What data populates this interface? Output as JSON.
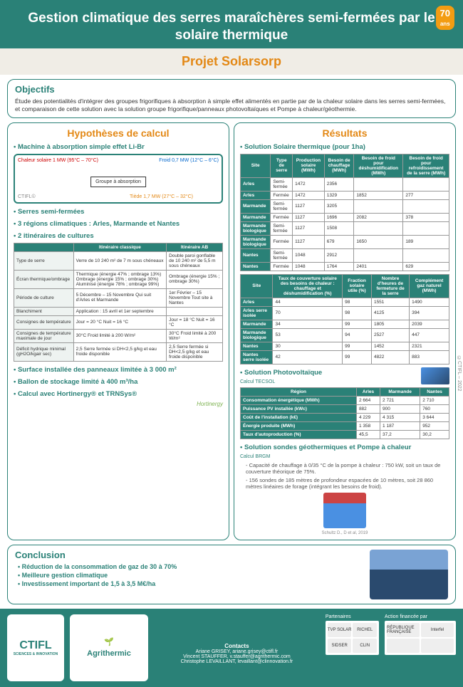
{
  "header": {
    "title": "Gestion climatique des serres maraîchères semi-fermées par le solaire thermique",
    "badge_num": "70",
    "badge_txt": "ans",
    "project": "Projet Solarsorp"
  },
  "objectifs": {
    "title": "Objectifs",
    "text": "Étude des potentialités d'intégrer des groupes frigorifiques à absorption à simple effet alimentés en partie par de la chaleur solaire dans les serres semi-fermées, et comparaison de cette solution avec la solution groupe frigorifique/panneaux photovoltaïques et Pompe à chaleur/géothermie."
  },
  "hypo": {
    "title": "Hypothèses de calcul",
    "b1": "Machine à absorption simple effet Li-Br",
    "diagram": {
      "ctifl": "CTIFL©",
      "hot": "Chaleur solaire 1 MW (95°C – 70°C)",
      "cold": "Froid 0,7 MW (12°C – 6°C)",
      "tepid": "Tiède 1,7 MW (27°C – 32°C)",
      "box": "Groupe à absorption"
    },
    "b2": "Serres semi-fermées",
    "b3": "3 régions climatiques : Arles, Marmande et Nantes",
    "b4": "2 itinéraires de cultures",
    "culture_tbl": {
      "hdr": [
        "",
        "Itinéraire classique",
        "Itinéraire AB"
      ],
      "rows": [
        [
          "Type de serre",
          "Verre de 10 240 m² de 7 m sous chéneaux",
          "Double paroi gonflable de 10 240 m² de 5,5 m sous chéneaux"
        ],
        [
          "Écran thermique/ombrage",
          "Thermique (énergie 47% ; ombrage 13%)\nOmbrage (énergie 15% ; ombrage 30%)\nAluminisé (énergie 78% ; ombrage 99%)",
          "Ombrage (énergie 15% ; ombrage 30%)"
        ],
        [
          "Période de culture",
          "5 Décembre – 15 Novembre\nQui suit d'Arles et Marmande",
          "1er Février – 15 Novembre\nTout site à Nantes"
        ],
        [
          "Blanchiment",
          "Application : 15 avril et 1er septembre",
          ""
        ],
        [
          "Consignes de température",
          "Jour = 20 °C\nNuit = 16 °C",
          "Jour = 18 °C\nNuit = 16 °C"
        ],
        [
          "Consignes de température maximale de jour",
          "30°C\nFroid limité à 200 W/m²",
          "30°C\nFroid limité à 200 W/m²"
        ],
        [
          "Déficit hydrique minimal (gH2O/kgair sec)",
          "2,5\nSerre fermée si DH<2,5 g/kg et eau froide disponible",
          "2,5\nSerre fermée si DH<2,5 g/kg et eau froide disponible"
        ]
      ]
    },
    "b5": "Surface installée des panneaux limitée à 3 000 m²",
    "b6": "Ballon de stockage limité à 400 m³/ha",
    "b7": "Calcul avec Hortinergy® et TRNSys®",
    "horti": "Hortinergy"
  },
  "res": {
    "title": "Résultats",
    "b1": "Solution Solaire thermique (pour 1ha)",
    "tbl1": {
      "hdr": [
        "Site",
        "Type de serre",
        "Production solaire (MWh)",
        "Besoin de chauffage (MWh)",
        "Besoin de froid pour déshumidification (MWh)",
        "Besoin de froid pour refroidissement de la serre (MWh)"
      ],
      "rows": [
        [
          "Arles",
          "Semi-fermée",
          "1472",
          "2356",
          "",
          ""
        ],
        [
          "Arles",
          "Fermée",
          "1472",
          "1329",
          "1852",
          "277"
        ],
        [
          "Marmande",
          "Semi-fermée",
          "1127",
          "3205",
          "",
          ""
        ],
        [
          "Marmande",
          "Fermée",
          "1127",
          "1696",
          "2082",
          "378"
        ],
        [
          "Marmande biologique",
          "Semi-fermée",
          "1127",
          "1508",
          "",
          ""
        ],
        [
          "Marmande biologique",
          "Fermée",
          "1127",
          "679",
          "1650",
          "189"
        ],
        [
          "Nantes",
          "Semi-fermée",
          "1048",
          "2912",
          "",
          ""
        ],
        [
          "Nantes",
          "Fermée",
          "1048",
          "1764",
          "2401",
          "629"
        ]
      ]
    },
    "tbl2": {
      "hdr": [
        "Site",
        "Taux de couverture solaire des besoins de chaleur : chauffage et déshumidification (%)",
        "Fraction solaire utile (%)",
        "Nombre d'heures de fermeture de la serre",
        "Complément gaz naturel (MWh)"
      ],
      "rows": [
        [
          "Arles",
          "44",
          "98",
          "1551",
          "1490"
        ],
        [
          "Arles serre isolée",
          "70",
          "98",
          "4125",
          "394"
        ],
        [
          "Marmande",
          "34",
          "99",
          "1805",
          "2039"
        ],
        [
          "Marmande biologique",
          "53",
          "94",
          "2527",
          "447"
        ],
        [
          "Nantes",
          "30",
          "99",
          "1452",
          "2321"
        ],
        [
          "Nantes serre isolée",
          "42",
          "99",
          "4822",
          "883"
        ]
      ]
    },
    "b2": "Solution Photovoltaïque",
    "tbl3": {
      "hdr": [
        "Région",
        "Arles",
        "Marmande",
        "Nantes"
      ],
      "label": "Calcul TECSOL",
      "rows": [
        [
          "Consommation énergétique (MWh)",
          "2 664",
          "2 721",
          "2 710"
        ],
        [
          "Puissance PV installée (kWc)",
          "882",
          "900",
          "760"
        ],
        [
          "Coût de l'installation (k€)",
          "4 229",
          "4 315",
          "3 644"
        ],
        [
          "Énergie produite (MWh)",
          "1 358",
          "1 187",
          "952"
        ],
        [
          "Taux d'autoproduction (%)",
          "45,5",
          "37,2",
          "30,2"
        ]
      ]
    },
    "b3": "Solution sondes géothermiques et Pompe à chaleur",
    "geo_label": "Calcul BRGM",
    "geo_n1": "Capacité de chauffage à 0/35 °C de la pompe à chaleur : 750 kW, soit un taux de couverture théorique de 75%.",
    "geo_n2": "156 sondes de 185 mètres de profondeur espacées de 10 mètres, soit 28 860 mètres linéaires de forage (intégrant les besoins de froid).",
    "geo_caption": "Schultz D., D et al, 2019"
  },
  "concl": {
    "title": "Conclusion",
    "p1": "Réduction de la consommation de gaz de 30 à 70%",
    "p2": "Meilleure gestion climatique",
    "p3": "Investissement important de 1,5 à 3,5 M€/ha"
  },
  "footer": {
    "ctifl": "CTIFL",
    "ctifl_sub": "SCIENCES & INNOVATION",
    "agri": "Agrithermic",
    "contacts_title": "Contacts",
    "c1": "Ariane GRISEY, ariane.grisey@ctifl.fr",
    "c2": "Vincent STAUFFER, v.stauffer@agrithermic.com",
    "c3": "Christophe LEVAILLANT, levaillant@clinnovation.fr",
    "part_title": "Partenaires",
    "p_logos": [
      "TVP SOLAR",
      "RICHEL",
      "SIDSER",
      "CLIN"
    ],
    "action_title": "Action financée par",
    "a_logos": [
      "RÉPUBLIQUE FRANÇAISE",
      "Interfel",
      "",
      ""
    ]
  },
  "copyright": "©CTIFL – 2022"
}
